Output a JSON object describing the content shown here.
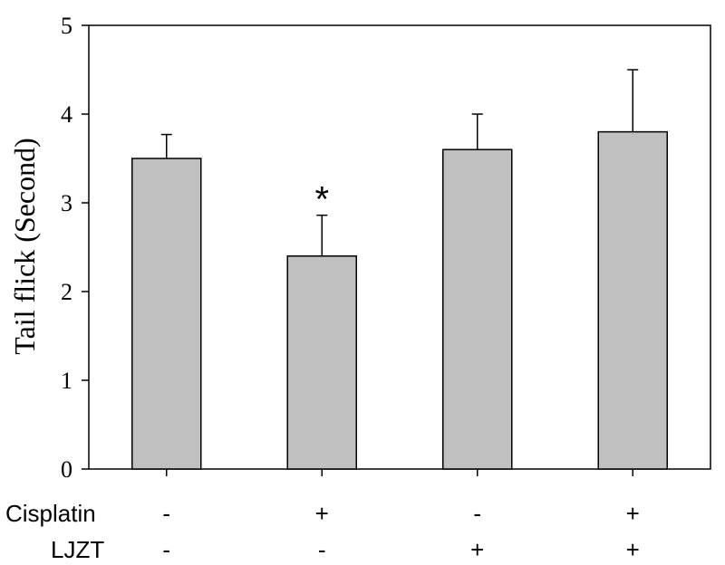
{
  "chart_data": {
    "type": "bar",
    "ylabel": "Tail flick (Second)",
    "ylim": [
      0,
      5
    ],
    "yticks": [
      0,
      1,
      2,
      3,
      4,
      5
    ],
    "grid": false,
    "bar_color": "#c0c0c0",
    "values": [
      3.5,
      2.4,
      3.6,
      3.8
    ],
    "error_bars": [
      0.27,
      0.46,
      0.4,
      0.7
    ],
    "annotations": [
      "",
      "*",
      "",
      ""
    ],
    "treatment_rows": [
      {
        "label": "Cisplatin",
        "values": [
          "-",
          "+",
          "-",
          "+"
        ]
      },
      {
        "label": "LJZT",
        "values": [
          "-",
          "-",
          "+",
          "+"
        ]
      }
    ]
  }
}
